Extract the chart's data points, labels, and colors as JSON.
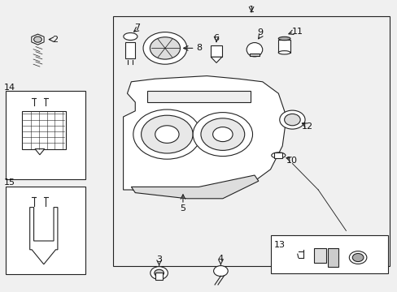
{
  "bg_color": "#f0f0f0",
  "line_color": "#222222",
  "fig_bg": "#f0f0f0",
  "lw": 0.8
}
